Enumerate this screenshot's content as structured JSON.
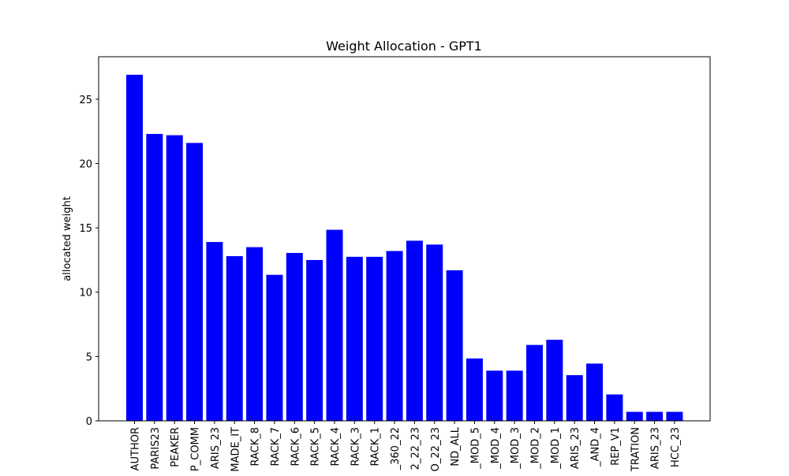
{
  "chart_data": {
    "type": "bar",
    "title": "Weight Allocation - GPT1",
    "xlabel": "",
    "ylabel": "allocated weight",
    "ylim": [
      0,
      28.3
    ],
    "yticks": [
      0,
      5,
      10,
      15,
      20,
      25
    ],
    "grid": false,
    "legend": "none",
    "bar_color": "#0000ff",
    "categories": [
      "AUTHOR",
      "PARIS23",
      "PEAKER",
      "P_COMM",
      "ARIS_23",
      "MADE_IT",
      "RACK_8",
      "RACK_7",
      "RACK_6",
      "RACK_5",
      "RACK_4",
      "RACK_3",
      "RACK_1",
      "_360_22",
      "2_22_23",
      "O_22_23",
      "ND_ALL",
      "_MOD_5",
      "_MOD_4",
      "_MOD_3",
      "_MOD_2",
      "_MOD_1",
      "ARIS_23",
      "_AND_4",
      "REP_V1",
      "TRATION",
      "ARIS_23",
      "HCC_23"
    ],
    "values": [
      26.9,
      22.3,
      22.2,
      21.6,
      13.9,
      12.8,
      13.5,
      11.35,
      13.05,
      12.5,
      14.85,
      12.75,
      12.75,
      13.2,
      14.0,
      13.7,
      11.7,
      4.85,
      3.9,
      3.9,
      5.9,
      6.3,
      3.55,
      4.45,
      2.05,
      0.7,
      0.7,
      0.7
    ]
  }
}
